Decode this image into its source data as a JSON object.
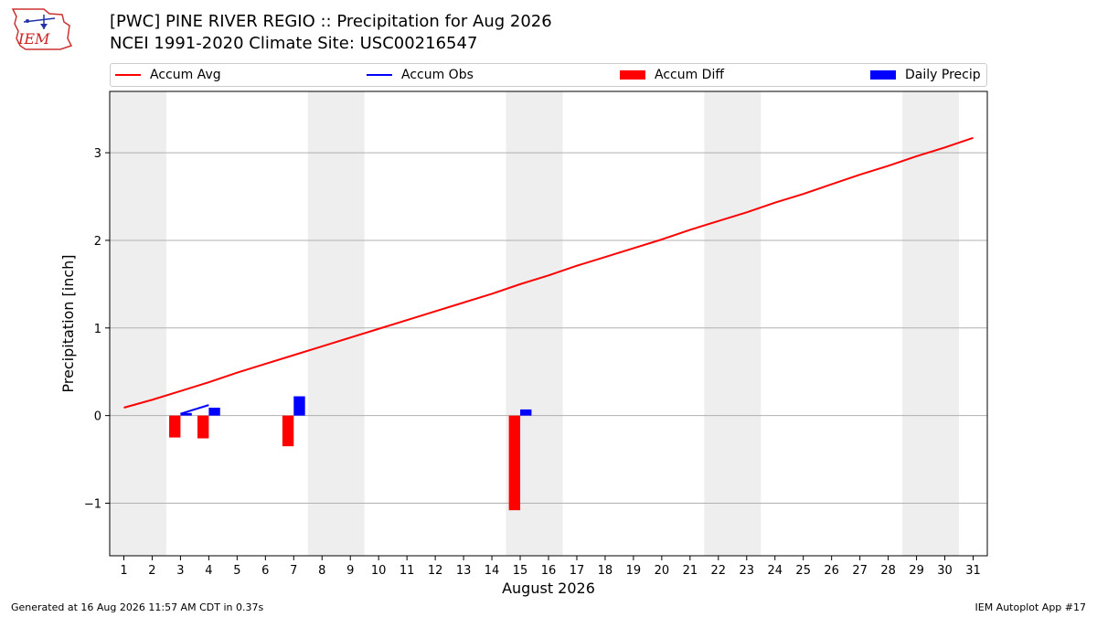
{
  "header": {
    "title_line1": "[PWC] PINE RIVER REGIO :: Precipitation for Aug 2026",
    "title_line2": "NCEI 1991-2020 Climate Site: USC00216547",
    "logo_text": "IEM"
  },
  "legend": {
    "accum_avg": "Accum Avg",
    "accum_obs": "Accum Obs",
    "accum_diff": "Accum Diff",
    "daily_precip": "Daily Precip"
  },
  "footer": {
    "generated": "Generated at 16 Aug 2026 11:57 AM CDT in 0.37s",
    "app": "IEM Autoplot App #17"
  },
  "colors": {
    "accum_avg": "#ff0000",
    "accum_obs": "#0000ff",
    "accum_diff": "#ff0000",
    "daily_precip": "#0000ff",
    "weekend_shade": "#eeeeee",
    "grid": "#b0b0b0"
  },
  "chart_data": {
    "type": "bar",
    "xlabel": "August 2026",
    "ylabel": "Precipitation [inch]",
    "x": [
      1,
      2,
      3,
      4,
      5,
      6,
      7,
      8,
      9,
      10,
      11,
      12,
      13,
      14,
      15,
      16,
      17,
      18,
      19,
      20,
      21,
      22,
      23,
      24,
      25,
      26,
      27,
      28,
      29,
      30,
      31
    ],
    "xlim": [
      0.5,
      31.5
    ],
    "ylim": [
      -1.6,
      3.7
    ],
    "yticks": [
      -1,
      0,
      1,
      2,
      3
    ],
    "ytick_labels": [
      "−1",
      "0",
      "1",
      "2",
      "3"
    ],
    "grid": "y",
    "legend_position": "top",
    "weekend_spans": [
      [
        0.5,
        2.5
      ],
      [
        7.5,
        9.5
      ],
      [
        14.5,
        16.5
      ],
      [
        21.5,
        23.5
      ],
      [
        28.5,
        30.5
      ]
    ],
    "series": [
      {
        "name": "Accum Avg",
        "type": "line",
        "x": [
          1,
          2,
          3,
          4,
          5,
          6,
          7,
          8,
          9,
          10,
          11,
          12,
          13,
          14,
          15,
          16,
          17,
          18,
          19,
          20,
          21,
          22,
          23,
          24,
          25,
          26,
          27,
          28,
          29,
          30,
          31
        ],
        "values": [
          0.09,
          0.18,
          0.28,
          0.38,
          0.49,
          0.59,
          0.69,
          0.79,
          0.89,
          0.99,
          1.09,
          1.19,
          1.29,
          1.39,
          1.5,
          1.6,
          1.71,
          1.81,
          1.91,
          2.01,
          2.12,
          2.22,
          2.32,
          2.43,
          2.53,
          2.64,
          2.75,
          2.85,
          2.96,
          3.06,
          3.17
        ]
      },
      {
        "name": "Accum Obs",
        "type": "line",
        "x": [
          3,
          4
        ],
        "values": [
          0.02,
          0.12
        ]
      },
      {
        "name": "Accum Diff",
        "type": "bar",
        "x": [
          3,
          4,
          7,
          15
        ],
        "values": [
          -0.25,
          -0.26,
          -0.35,
          -1.08
        ]
      },
      {
        "name": "Daily Precip",
        "type": "bar",
        "x": [
          3,
          4,
          7,
          15
        ],
        "values": [
          0.03,
          0.09,
          0.22,
          0.07
        ]
      }
    ]
  }
}
